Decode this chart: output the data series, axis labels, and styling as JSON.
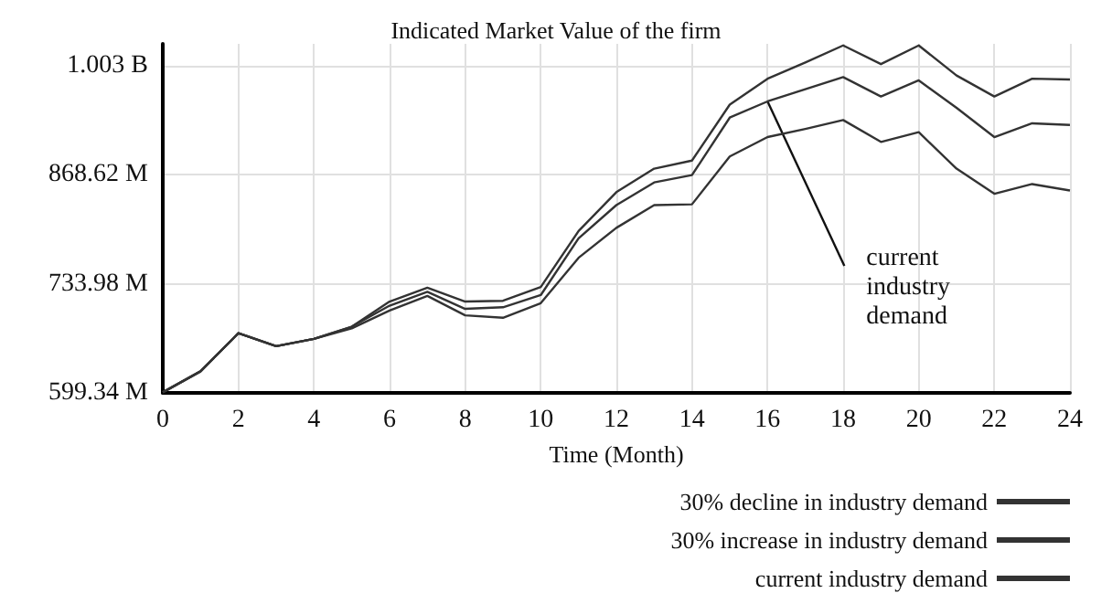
{
  "chart_data": {
    "type": "line",
    "title": "Indicated Market Value of the firm",
    "xlabel": "Time (Month)",
    "x": [
      0,
      1,
      2,
      3,
      4,
      5,
      6,
      7,
      8,
      9,
      10,
      11,
      12,
      13,
      14,
      15,
      16,
      17,
      18,
      19,
      20,
      21,
      22,
      23,
      24
    ],
    "series": [
      {
        "name": "30% decline in industry demand",
        "color": "#333333",
        "values": [
          600000000,
          626000000,
          673000000,
          657000000,
          666000000,
          679000000,
          701000000,
          719000000,
          695000000,
          692000000,
          710000000,
          766000000,
          803000000,
          831000000,
          832000000,
          891000000,
          915000000,
          925000000,
          936000000,
          909000000,
          921000000,
          876000000,
          845000000,
          857000000,
          849000000
        ]
      },
      {
        "name": "30% increase in industry demand",
        "color": "#333333",
        "values": [
          600000000,
          626000000,
          673000000,
          657000000,
          666000000,
          681000000,
          712000000,
          729000000,
          712000000,
          713000000,
          730000000,
          799000000,
          847000000,
          876000000,
          886000000,
          955000000,
          987000000,
          1007000000,
          1028000000,
          1005000000,
          1028000000,
          991000000,
          965000000,
          987000000,
          986000000
        ]
      },
      {
        "name": "current industry demand",
        "color": "#333333",
        "values": [
          600000000,
          626000000,
          673000000,
          657000000,
          666000000,
          681000000,
          707000000,
          724000000,
          703000000,
          705000000,
          720000000,
          790000000,
          831000000,
          859000000,
          868000000,
          939000000,
          959000000,
          974000000,
          989000000,
          965000000,
          985000000,
          951000000,
          915000000,
          932000000,
          930000000
        ]
      }
    ],
    "xlim": [
      0,
      24
    ],
    "xticks": [
      0,
      2,
      4,
      6,
      8,
      10,
      12,
      14,
      16,
      18,
      20,
      22,
      24
    ],
    "ylim": [
      599340000,
      1030000000
    ],
    "yticks": [
      {
        "value": 599340000,
        "label": "599.34 M"
      },
      {
        "value": 733980000,
        "label": "733.98 M"
      },
      {
        "value": 868620000,
        "label": "868.62 M"
      },
      {
        "value": 1003000000,
        "label": "1.003 B"
      }
    ],
    "annotations": [
      {
        "text": "current industry demand",
        "x": 16,
        "y": 959000000
      }
    ],
    "grid": true,
    "legend": "bottom right",
    "line_style": "solid"
  }
}
